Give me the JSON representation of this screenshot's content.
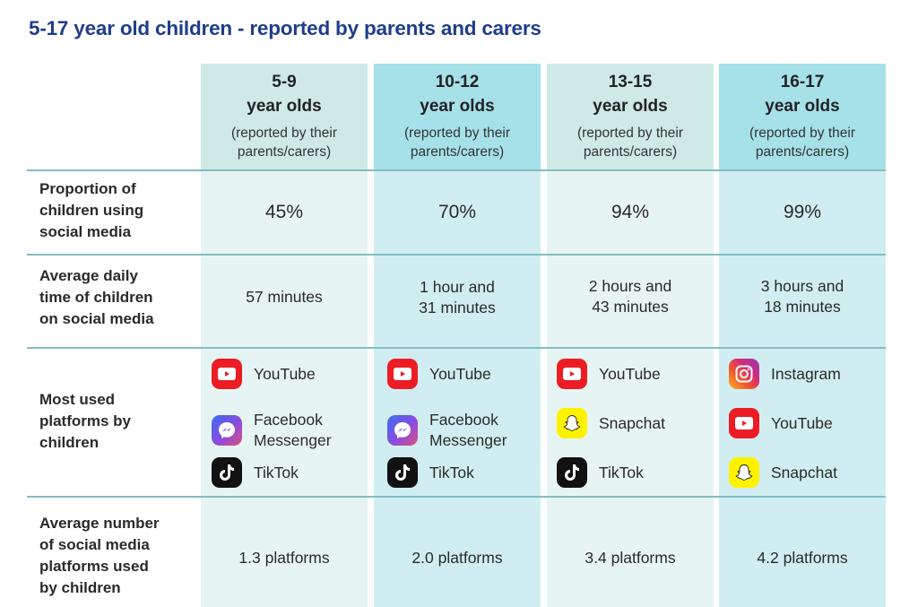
{
  "title": "5-17 year old children - reported by parents and carers",
  "columns": [
    {
      "range": "5-9",
      "unit": "year olds",
      "note_line1": "(reported by their",
      "note_line2": "parents/carers)"
    },
    {
      "range": "10-12",
      "unit": "year olds",
      "note_line1": "(reported by their",
      "note_line2": "parents/carers)"
    },
    {
      "range": "13-15",
      "unit": "year olds",
      "note_line1": "(reported by their",
      "note_line2": "parents/carers)"
    },
    {
      "range": "16-17",
      "unit": "year olds",
      "note_line1": "(reported by their",
      "note_line2": "parents/carers)"
    }
  ],
  "rows": {
    "proportion": {
      "label": [
        "Proportion of",
        "children using",
        "social media"
      ],
      "values": [
        "45%",
        "70%",
        "94%",
        "99%"
      ]
    },
    "daily_time": {
      "label": [
        "Average daily",
        "time of children",
        "on social media"
      ],
      "values": [
        [
          "57 minutes"
        ],
        [
          "1 hour and",
          "31 minutes"
        ],
        [
          "2 hours and",
          "43 minutes"
        ],
        [
          "3 hours and",
          "18 minutes"
        ]
      ]
    },
    "platforms": {
      "label": [
        "Most used",
        "platforms by",
        "children"
      ],
      "values": [
        [
          {
            "name": [
              "YouTube"
            ],
            "icon": "youtube-icon"
          },
          {
            "name": [
              "Facebook",
              "Messenger"
            ],
            "icon": "messenger-icon"
          },
          {
            "name": [
              "TikTok"
            ],
            "icon": "tiktok-icon"
          }
        ],
        [
          {
            "name": [
              "YouTube"
            ],
            "icon": "youtube-icon"
          },
          {
            "name": [
              "Facebook",
              "Messenger"
            ],
            "icon": "messenger-icon"
          },
          {
            "name": [
              "TikTok"
            ],
            "icon": "tiktok-icon"
          }
        ],
        [
          {
            "name": [
              "YouTube"
            ],
            "icon": "youtube-icon"
          },
          {
            "name": [
              "Snapchat"
            ],
            "icon": "snapchat-icon"
          },
          {
            "name": [
              "TikTok"
            ],
            "icon": "tiktok-icon"
          }
        ],
        [
          {
            "name": [
              "Instagram"
            ],
            "icon": "instagram-icon"
          },
          {
            "name": [
              "YouTube"
            ],
            "icon": "youtube-icon"
          },
          {
            "name": [
              "Snapchat"
            ],
            "icon": "snapchat-icon"
          }
        ]
      ]
    },
    "avg_platforms": {
      "label": [
        "Average number",
        "of social media",
        "platforms used",
        "by children"
      ],
      "values": [
        "1.3 platforms",
        "2.0 platforms",
        "3.4 platforms",
        "4.2 platforms"
      ]
    }
  },
  "colors": {
    "title": "#1f3d8a",
    "header_odd": "#cfe9e6",
    "body_odd": "#e6f5f3",
    "header_even": "#a6e1ea",
    "body_even": "#d0eef2",
    "row_rule": "#86bcc2"
  }
}
